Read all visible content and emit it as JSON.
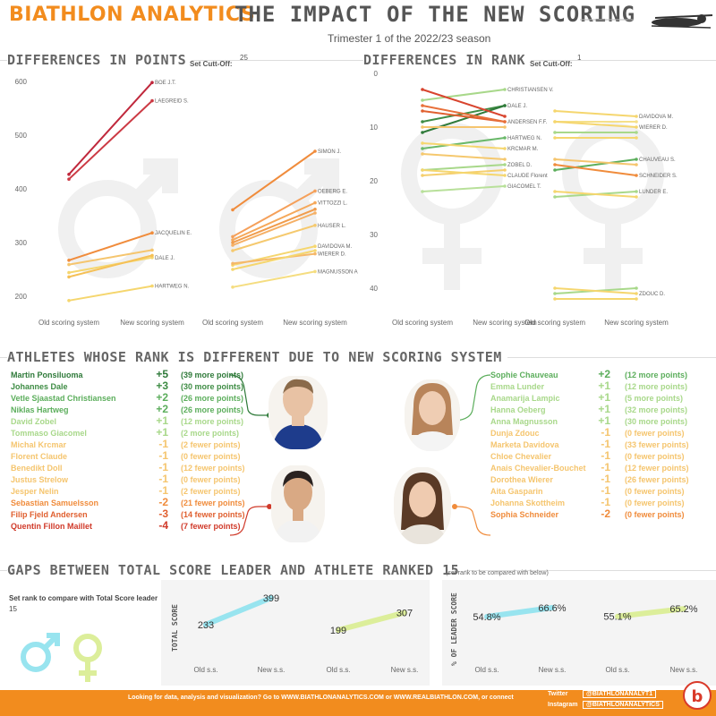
{
  "header": {
    "brand": "BIATHLON ANALYTICS",
    "title": "THE IMPACT OF THE NEW SCORING",
    "subtitle": "Trimester 1 of the 2022/23 season"
  },
  "sections": {
    "points": {
      "title": "DIFFERENCES IN POINTS",
      "set_label": "Set  Cutt-Off:",
      "set_value": "25"
    },
    "rank": {
      "title": "DIFFERENCES IN RANK",
      "set_label": "Set Cutt-Off:",
      "set_value": "1"
    },
    "athletes": {
      "title": "ATHLETES WHOSE RANK IS DIFFERENT DUE TO NEW SCORING SYSTEM"
    },
    "gaps": {
      "title": "GAPS BETWEEN TOTAL SCORE LEADER AND ATHLETE RANKED",
      "rank": "15",
      "note": "(set rank to be compared with below)",
      "set_label": "Set rank to compare with Total Score leader",
      "set_value": "15"
    }
  },
  "colors": {
    "accent": "#f28c1e",
    "dark_red": "#c0283c",
    "orange": "#f08c3c",
    "light_orange": "#f5b366",
    "yellow": "#f5d66e",
    "light_green": "#a8d88a",
    "green": "#5cae5c",
    "dark_green": "#2f7a3a",
    "cyan": "#98e4ef",
    "lime": "#dcee9a"
  },
  "icons": [
    "male-symbol",
    "female-symbol",
    "biathlete-silhouette",
    "biathlon-analytics-logo"
  ],
  "chart_data": [
    {
      "type": "line",
      "title": "DIFFERENCES IN POINTS",
      "categories": [
        "Old scoring system",
        "New scoring system"
      ],
      "ylim": [
        185,
        605
      ],
      "yticks": [
        200,
        300,
        400,
        500,
        600
      ],
      "grid": false,
      "series": [
        {
          "group": "men",
          "name": "BOE J.T.",
          "values": [
            427,
            598
          ],
          "color": "#c0283c"
        },
        {
          "group": "men",
          "name": "LAEGREID S.",
          "values": [
            418,
            564
          ],
          "color": "#cc3a44"
        },
        {
          "group": "men",
          "name": "JACQUELIN E.",
          "values": [
            267,
            318
          ],
          "color": "#f08c3c"
        },
        {
          "group": "men",
          "values": [
            259,
            286
          ],
          "color": "#f5c56e"
        },
        {
          "group": "men",
          "name": "DALE J.",
          "values": [
            244,
            272
          ],
          "color": "#f5d66e"
        },
        {
          "group": "men",
          "values": [
            236,
            276
          ],
          "color": "#f5c056"
        },
        {
          "group": "men",
          "name": "HARTWEG N.",
          "values": [
            192,
            219
          ],
          "color": "#f5d66e"
        },
        {
          "group": "women",
          "name": "SIMON J.",
          "values": [
            361,
            470
          ],
          "color": "#f08c3c"
        },
        {
          "group": "women",
          "name": "OEBERG E.",
          "values": [
            311,
            396
          ],
          "color": "#f5a05a"
        },
        {
          "group": "women",
          "name": "VITTOZZI L.",
          "values": [
            305,
            374
          ],
          "color": "#f5a85a"
        },
        {
          "group": "women",
          "values": [
            300,
            362
          ],
          "color": "#f09c4c"
        },
        {
          "group": "women",
          "values": [
            295,
            355
          ],
          "color": "#f5b066"
        },
        {
          "group": "women",
          "name": "HAUSER L.",
          "values": [
            285,
            332
          ],
          "color": "#f5c96e"
        },
        {
          "group": "women",
          "name": "DAVIDOVA M.",
          "values": [
            258,
            293
          ],
          "color": "#f5d66e"
        },
        {
          "group": "women",
          "name": "WIERER D.",
          "values": [
            261,
            279
          ],
          "color": "#f5b86a"
        },
        {
          "group": "women",
          "values": [
            250,
            285
          ],
          "color": "#f5d66e"
        },
        {
          "group": "women",
          "name": "MAGNUSSON A.",
          "values": [
            217,
            246
          ],
          "color": "#f5dd80"
        }
      ]
    },
    {
      "type": "line",
      "title": "DIFFERENCES IN RANK",
      "categories": [
        "Old scoring system",
        "New scoring system"
      ],
      "ylim": [
        0,
        44
      ],
      "yticks": [
        0,
        10,
        20,
        30,
        40
      ],
      "reversed": true,
      "grid": false,
      "series": [
        {
          "group": "men",
          "name": "CHRISTIANSEN V.",
          "values": [
            5,
            3
          ],
          "color": "#a8d88a"
        },
        {
          "group": "men",
          "name": "DALE J.",
          "values": [
            9,
            6
          ],
          "color": "#3e8c44"
        },
        {
          "group": "men",
          "values": [
            11,
            6
          ],
          "color": "#2f7a3a"
        },
        {
          "group": "men",
          "values": [
            3,
            8
          ],
          "color": "#d8442e"
        },
        {
          "group": "men",
          "values": [
            7,
            9
          ],
          "color": "#e06030"
        },
        {
          "group": "men",
          "name": "ANDERSEN F.F.",
          "values": [
            6,
            9
          ],
          "color": "#e8703a"
        },
        {
          "group": "men",
          "values": [
            10,
            10
          ],
          "color": "#f5c56e"
        },
        {
          "group": "men",
          "name": "HARTWEG N.",
          "values": [
            14,
            12
          ],
          "color": "#6ab86a"
        },
        {
          "group": "men",
          "name": "KRCMAR M.",
          "values": [
            13,
            14
          ],
          "color": "#f5d66e"
        },
        {
          "group": "men",
          "values": [
            15,
            16
          ],
          "color": "#f5c86e"
        },
        {
          "group": "men",
          "name": "ZOBEL D.",
          "values": [
            18,
            17
          ],
          "color": "#a8d88a"
        },
        {
          "group": "men",
          "values": [
            19,
            18
          ],
          "color": "#f5cf6e"
        },
        {
          "group": "men",
          "name": "CLAUDE Florent",
          "values": [
            18,
            19
          ],
          "color": "#f5d66e"
        },
        {
          "group": "men",
          "name": "GIACOMEL T.",
          "values": [
            22,
            21
          ],
          "color": "#b8e09a"
        },
        {
          "group": "women",
          "name": "DAVIDOVA M.",
          "values": [
            7,
            8
          ],
          "color": "#f5d66e"
        },
        {
          "group": "women",
          "values": [
            9,
            9
          ],
          "color": "#f5e08a"
        },
        {
          "group": "women",
          "name": "WIERER D.",
          "values": [
            9,
            10
          ],
          "color": "#f5d66e"
        },
        {
          "group": "women",
          "values": [
            11,
            11
          ],
          "color": "#a8d88a"
        },
        {
          "group": "women",
          "values": [
            12,
            12
          ],
          "color": "#f5d66e"
        },
        {
          "group": "women",
          "name": "CHAUVEAU S.",
          "values": [
            18,
            16
          ],
          "color": "#5cae5c"
        },
        {
          "group": "women",
          "values": [
            16,
            17
          ],
          "color": "#f5c56e"
        },
        {
          "group": "women",
          "name": "SCHNEIDER S.",
          "values": [
            17,
            19
          ],
          "color": "#f08c3c"
        },
        {
          "group": "women",
          "name": "LUNDER E.",
          "values": [
            23,
            22
          ],
          "color": "#a8d88a"
        },
        {
          "group": "women",
          "values": [
            22,
            23
          ],
          "color": "#f5d66e"
        },
        {
          "group": "women",
          "values": [
            41,
            40
          ],
          "color": "#a8d88a"
        },
        {
          "group": "women",
          "name": "ZDOUC D.",
          "values": [
            40,
            41
          ],
          "color": "#f5d66e"
        },
        {
          "group": "women",
          "values": [
            42,
            42
          ],
          "color": "#f5d66e"
        }
      ]
    },
    {
      "type": "line",
      "title": "TOTAL SCORE",
      "ylabel": "TOTAL SCORE",
      "categories": [
        "Old s.s.",
        "New s.s."
      ],
      "series": [
        {
          "group": "men",
          "values": [
            233,
            399
          ],
          "labels": [
            "233",
            "399"
          ],
          "color": "#98e4ef"
        },
        {
          "group": "women",
          "values": [
            199,
            307
          ],
          "labels": [
            "199",
            "307"
          ],
          "color": "#dcee9a"
        }
      ]
    },
    {
      "type": "line",
      "title": "% OF LEADER SCORE",
      "ylabel": "% OF LEADER SCORE",
      "categories": [
        "Old s.s.",
        "New s.s."
      ],
      "series": [
        {
          "group": "men",
          "values": [
            54.8,
            66.6
          ],
          "labels": [
            "54.8%",
            "66.6%"
          ],
          "color": "#98e4ef"
        },
        {
          "group": "women",
          "values": [
            55.1,
            65.2
          ],
          "labels": [
            "55.1%",
            "65.2%"
          ],
          "color": "#dcee9a"
        }
      ]
    }
  ],
  "athletes": {
    "men": [
      {
        "name": "Martin Ponsiluoma",
        "delta": "+5",
        "detail": "(39 more points)",
        "color": "#2f7a3a"
      },
      {
        "name": "Johannes Dale",
        "delta": "+3",
        "detail": "(30 more points)",
        "color": "#3e8c44"
      },
      {
        "name": "Vetle Sjaastad Christiansen",
        "delta": "+2",
        "detail": "(26 more points)",
        "color": "#5cae5c"
      },
      {
        "name": "Niklas Hartweg",
        "delta": "+2",
        "detail": "(26 more points)",
        "color": "#5cae5c"
      },
      {
        "name": "David Zobel",
        "delta": "+1",
        "detail": "(12 more points)",
        "color": "#a8d88a"
      },
      {
        "name": "Tommaso Giacomel",
        "delta": "+1",
        "detail": "(2 more points)",
        "color": "#a8d88a"
      },
      {
        "name": "Michal Krcmar",
        "delta": "-1",
        "detail": "(2 fewer points)",
        "color": "#f5c56e"
      },
      {
        "name": "Florent Claude",
        "delta": "-1",
        "detail": "(0 fewer points)",
        "color": "#f5c56e"
      },
      {
        "name": "Benedikt Doll",
        "delta": "-1",
        "detail": "(12 fewer points)",
        "color": "#f5c56e"
      },
      {
        "name": "Justus Strelow",
        "delta": "-1",
        "detail": "(0 fewer points)",
        "color": "#f5c56e"
      },
      {
        "name": "Jesper Nelin",
        "delta": "-1",
        "detail": "(2 fewer points)",
        "color": "#f5c56e"
      },
      {
        "name": "Sebastian Samuelsson",
        "delta": "-2",
        "detail": "(21 fewer points)",
        "color": "#f08c3c"
      },
      {
        "name": "Filip Fjeld Andersen",
        "delta": "-3",
        "detail": "(14 fewer points)",
        "color": "#e06030"
      },
      {
        "name": "Quentin Fillon Maillet",
        "delta": "-4",
        "detail": "(7 fewer points)",
        "color": "#d03a2a"
      }
    ],
    "women": [
      {
        "name": "Sophie Chauveau",
        "delta": "+2",
        "detail": "(12 more points)",
        "color": "#5cae5c"
      },
      {
        "name": "Emma Lunder",
        "delta": "+1",
        "detail": "(12 more points)",
        "color": "#a8d88a"
      },
      {
        "name": "Anamarija Lampic",
        "delta": "+1",
        "detail": "(5 more points)",
        "color": "#a8d88a"
      },
      {
        "name": "Hanna Oeberg",
        "delta": "+1",
        "detail": "(32 more points)",
        "color": "#a8d88a"
      },
      {
        "name": "Anna Magnusson",
        "delta": "+1",
        "detail": "(30 more points)",
        "color": "#a8d88a"
      },
      {
        "name": "Dunja Zdouc",
        "delta": "-1",
        "detail": "(0 fewer points)",
        "color": "#f5c56e"
      },
      {
        "name": "Marketa Davidova",
        "delta": "-1",
        "detail": "(33 fewer points)",
        "color": "#f5c56e"
      },
      {
        "name": "Chloe Chevalier",
        "delta": "-1",
        "detail": "(0 fewer points)",
        "color": "#f5c56e"
      },
      {
        "name": "Anais Chevalier-Bouchet",
        "delta": "-1",
        "detail": "(12 fewer points)",
        "color": "#f5c56e"
      },
      {
        "name": "Dorothea Wierer",
        "delta": "-1",
        "detail": "(26 fewer points)",
        "color": "#f5c56e"
      },
      {
        "name": "Aita Gasparin",
        "delta": "-1",
        "detail": "(0 fewer points)",
        "color": "#f5c56e"
      },
      {
        "name": "Johanna Skottheim",
        "delta": "-1",
        "detail": "(0 fewer points)",
        "color": "#f5c56e"
      },
      {
        "name": "Sophia Schneider",
        "delta": "-2",
        "detail": "(0 fewer points)",
        "color": "#f08c3c"
      }
    ]
  },
  "footer": {
    "text": "Looking for data, analysis and visualization? Go to WWW.BIATHLONANALYTICS.COM or WWW.REALBIATHLON.COM, or connect",
    "twitter_label": "Twitter",
    "twitter_handle": "@BIATHLONANALYT1",
    "instagram_label": "Instagram",
    "instagram_handle": "@BIATHLONANALYTICS"
  }
}
